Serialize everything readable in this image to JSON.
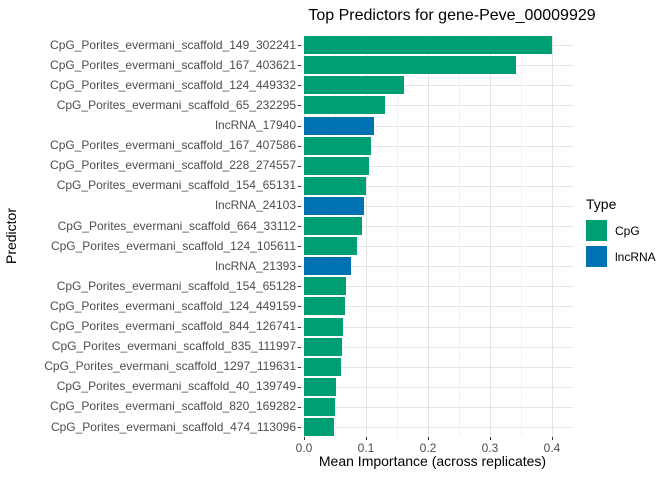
{
  "title": "Top Predictors for gene-Peve_00009929",
  "axes": {
    "x_title": "Mean Importance (across replicates)",
    "y_title": "Predictor"
  },
  "legend": {
    "title": "Type",
    "entries": [
      {
        "label": "CpG",
        "color": "#009E73"
      },
      {
        "label": "lncRNA",
        "color": "#0072B2"
      }
    ]
  },
  "chart_data": {
    "type": "bar",
    "orientation": "horizontal",
    "title": "Top Predictors for gene-Peve_00009929",
    "xlabel": "Mean Importance (across replicates)",
    "ylabel": "Predictor",
    "xlim": [
      0,
      0.43
    ],
    "x_major_ticks": [
      0.0,
      0.1,
      0.2,
      0.3,
      0.4
    ],
    "x_tick_labels": [
      "0.0",
      "0.1",
      "0.2",
      "0.3",
      "0.4"
    ],
    "x_minor_ticks": [
      0.05,
      0.15,
      0.25,
      0.35
    ],
    "grid": true,
    "legend_position": "right",
    "series_colors": {
      "CpG": "#009E73",
      "lncRNA": "#0072B2"
    },
    "bars": [
      {
        "label": "CpG_Porites_evermani_scaffold_149_302241",
        "type": "CpG",
        "value": 0.4
      },
      {
        "label": "CpG_Porites_evermani_scaffold_167_403621",
        "type": "CpG",
        "value": 0.342
      },
      {
        "label": "CpG_Porites_evermani_scaffold_124_449332",
        "type": "CpG",
        "value": 0.161
      },
      {
        "label": "CpG_Porites_evermani_scaffold_65_232295",
        "type": "CpG",
        "value": 0.13
      },
      {
        "label": "lncRNA_17940",
        "type": "lncRNA",
        "value": 0.113
      },
      {
        "label": "CpG_Porites_evermani_scaffold_167_407586",
        "type": "CpG",
        "value": 0.108
      },
      {
        "label": "CpG_Porites_evermani_scaffold_228_274557",
        "type": "CpG",
        "value": 0.104
      },
      {
        "label": "CpG_Porites_evermani_scaffold_154_65131",
        "type": "CpG",
        "value": 0.1
      },
      {
        "label": "lncRNA_24103",
        "type": "lncRNA",
        "value": 0.097
      },
      {
        "label": "CpG_Porites_evermani_scaffold_664_33112",
        "type": "CpG",
        "value": 0.094
      },
      {
        "label": "CpG_Porites_evermani_scaffold_124_105611",
        "type": "CpG",
        "value": 0.085
      },
      {
        "label": "lncRNA_21393",
        "type": "lncRNA",
        "value": 0.076
      },
      {
        "label": "CpG_Porites_evermani_scaffold_154_65128",
        "type": "CpG",
        "value": 0.068
      },
      {
        "label": "CpG_Porites_evermani_scaffold_124_449159",
        "type": "CpG",
        "value": 0.066
      },
      {
        "label": "CpG_Porites_evermani_scaffold_844_126741",
        "type": "CpG",
        "value": 0.063
      },
      {
        "label": "CpG_Porites_evermani_scaffold_835_111997",
        "type": "CpG",
        "value": 0.061
      },
      {
        "label": "CpG_Porites_evermani_scaffold_1297_119631",
        "type": "CpG",
        "value": 0.06
      },
      {
        "label": "CpG_Porites_evermani_scaffold_40_139749",
        "type": "CpG",
        "value": 0.052
      },
      {
        "label": "CpG_Porites_evermani_scaffold_820_169282",
        "type": "CpG",
        "value": 0.05
      },
      {
        "label": "CpG_Porites_evermani_scaffold_474_113096",
        "type": "CpG",
        "value": 0.049
      }
    ],
    "theme": {
      "background": "#FFFFFF",
      "grid_major": "#E4E4E4",
      "grid_minor": "#F0F0F0",
      "axis_text": "#4D4D4D",
      "tick_mark": "#333333",
      "title_color": "#000000"
    }
  }
}
